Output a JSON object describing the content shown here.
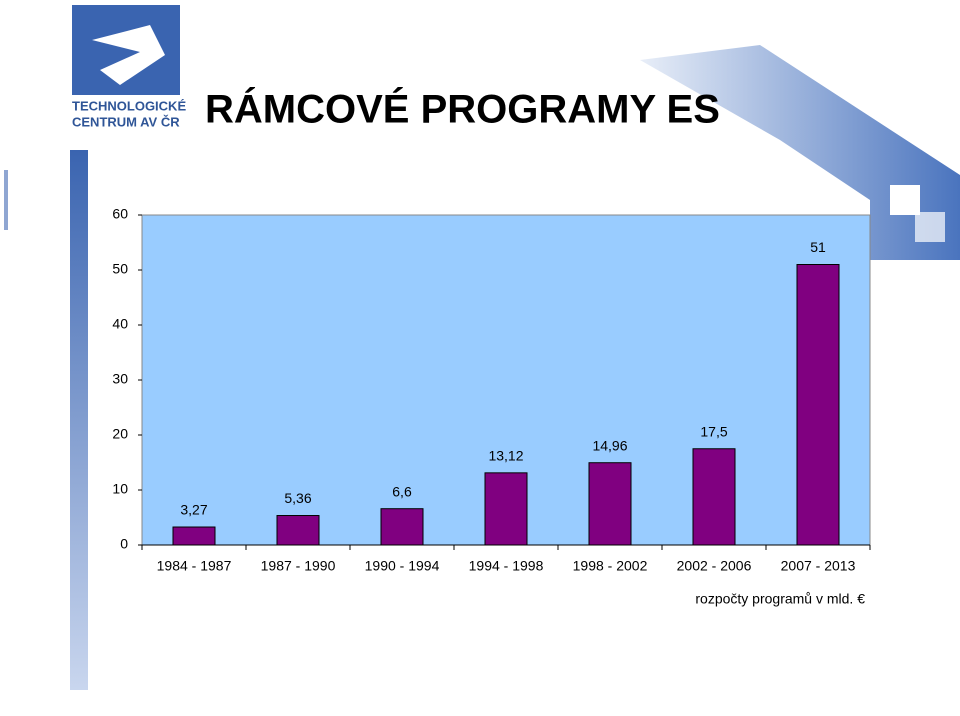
{
  "logo": [
    "TECHNOLOGICKÉ",
    "CENTRUM AV ČR"
  ],
  "chart_data": {
    "type": "bar",
    "title": "RÁMCOVÉ PROGRAMY ES",
    "x_label": "rozpočty programů v mld. €",
    "categories": [
      "1984 - 1987",
      "1987 - 1990",
      "1990 - 1994",
      "1994 - 1998",
      "1998 - 2002",
      "2002 - 2006",
      "2007 - 2013"
    ],
    "values": [
      3.27,
      5.36,
      6.6,
      13.12,
      14.96,
      17.5,
      51
    ],
    "value_labels": [
      "3,27",
      "5,36",
      "6,6",
      "13,12",
      "14,96",
      "17,5",
      "51"
    ],
    "color": "#800080",
    "plot_background": "#99ccff",
    "ylim": [
      0,
      60
    ],
    "yticks": [
      0,
      10,
      20,
      30,
      40,
      50,
      60
    ],
    "grid": false
  }
}
